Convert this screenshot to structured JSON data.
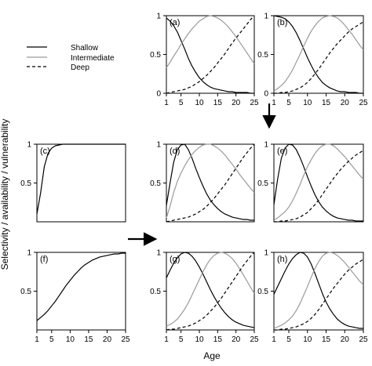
{
  "figure": {
    "ylabel": "Selectivity / availability / vulnerability",
    "xlabel": "Age"
  },
  "legend": [
    {
      "label": "Shallow",
      "style": "solid",
      "color": "#000000"
    },
    {
      "label": "Intermediate",
      "style": "solid",
      "color": "#9a9a9a"
    },
    {
      "label": "Deep",
      "style": "dashed",
      "color": "#000000"
    }
  ],
  "arrows": [
    {
      "name": "arrow-down",
      "from_panel": "b",
      "to_panel": "e"
    },
    {
      "name": "arrow-right",
      "from_panel": "f",
      "to_panel": "g"
    }
  ],
  "chart_data": [
    {
      "panel": "a",
      "type": "line",
      "xlim": [
        1,
        25
      ],
      "ylim": [
        0,
        1
      ],
      "xticks": [
        "1",
        "5",
        "10",
        "15",
        "20",
        "25"
      ],
      "yticks": [
        "0",
        "0.5",
        "1"
      ],
      "x": [
        1,
        2,
        3,
        4,
        5,
        6,
        7,
        8,
        9,
        10,
        11,
        12,
        13,
        14,
        15,
        16,
        17,
        18,
        19,
        20,
        21,
        22,
        23,
        24,
        25
      ],
      "series": [
        {
          "name": "Shallow",
          "values": [
            0.97,
            0.93,
            0.87,
            0.79,
            0.68,
            0.57,
            0.45,
            0.35,
            0.27,
            0.2,
            0.15,
            0.11,
            0.08,
            0.06,
            0.05,
            0.04,
            0.03,
            0.02,
            0.02,
            0.01,
            0.01,
            0.01,
            0.01,
            0.0,
            0.0
          ]
        },
        {
          "name": "Intermediate",
          "values": [
            0.33,
            0.4,
            0.48,
            0.55,
            0.63,
            0.7,
            0.77,
            0.83,
            0.88,
            0.93,
            0.96,
            0.99,
            1.0,
            0.99,
            0.97,
            0.94,
            0.9,
            0.85,
            0.79,
            0.73,
            0.66,
            0.59,
            0.52,
            0.45,
            0.38
          ]
        },
        {
          "name": "Deep",
          "values": [
            0.0,
            0.01,
            0.02,
            0.03,
            0.04,
            0.05,
            0.07,
            0.09,
            0.12,
            0.15,
            0.19,
            0.23,
            0.28,
            0.33,
            0.39,
            0.45,
            0.51,
            0.58,
            0.65,
            0.71,
            0.77,
            0.83,
            0.89,
            0.95,
            1.0
          ]
        }
      ]
    },
    {
      "panel": "b",
      "type": "line",
      "xlim": [
        1,
        25
      ],
      "ylim": [
        0,
        1
      ],
      "xticks": [
        "1",
        "5",
        "10",
        "15",
        "20",
        "25"
      ],
      "yticks": [
        "0",
        "0.5",
        "1"
      ],
      "x": [
        1,
        2,
        3,
        4,
        5,
        6,
        7,
        8,
        9,
        10,
        11,
        12,
        13,
        14,
        15,
        16,
        17,
        18,
        19,
        20,
        21,
        22,
        23,
        24,
        25
      ],
      "series": [
        {
          "name": "Shallow",
          "values": [
            1.0,
            0.99,
            0.98,
            0.96,
            0.92,
            0.86,
            0.78,
            0.68,
            0.57,
            0.46,
            0.36,
            0.27,
            0.2,
            0.14,
            0.1,
            0.07,
            0.05,
            0.03,
            0.02,
            0.02,
            0.01,
            0.01,
            0.01,
            0.0,
            0.0
          ]
        },
        {
          "name": "Intermediate",
          "values": [
            0.03,
            0.06,
            0.1,
            0.15,
            0.22,
            0.3,
            0.4,
            0.5,
            0.61,
            0.71,
            0.8,
            0.87,
            0.93,
            0.97,
            0.99,
            1.0,
            0.99,
            0.97,
            0.93,
            0.88,
            0.82,
            0.76,
            0.69,
            0.62,
            0.56
          ]
        },
        {
          "name": "Deep",
          "values": [
            0.0,
            0.0,
            0.01,
            0.01,
            0.02,
            0.03,
            0.05,
            0.07,
            0.1,
            0.14,
            0.19,
            0.25,
            0.31,
            0.38,
            0.45,
            0.52,
            0.58,
            0.64,
            0.69,
            0.74,
            0.79,
            0.83,
            0.86,
            0.89,
            0.92
          ]
        }
      ]
    },
    {
      "panel": "c",
      "type": "line",
      "xlim": [
        1,
        25
      ],
      "ylim": [
        0,
        1
      ],
      "yticks": [
        "0.5",
        "1"
      ],
      "x": [
        1,
        2,
        3,
        4,
        5,
        6,
        7,
        8,
        9,
        10,
        11,
        12,
        13,
        14,
        15,
        16,
        17,
        18,
        19,
        20,
        21,
        22,
        23,
        24,
        25
      ],
      "series": [
        {
          "values": [
            0.1,
            0.37,
            0.71,
            0.88,
            0.95,
            0.98,
            0.99,
            1.0,
            1.0,
            1.0,
            1.0,
            1.0,
            1.0,
            1.0,
            1.0,
            1.0,
            1.0,
            1.0,
            1.0,
            1.0,
            1.0,
            1.0,
            1.0,
            1.0,
            1.0
          ]
        }
      ]
    },
    {
      "panel": "d",
      "type": "line",
      "xlim": [
        1,
        25
      ],
      "ylim": [
        0,
        1
      ],
      "yticks": [
        "0.5",
        "1"
      ],
      "x": [
        1,
        2,
        3,
        4,
        5,
        6,
        7,
        8,
        9,
        10,
        11,
        12,
        13,
        14,
        15,
        16,
        17,
        18,
        19,
        20,
        21,
        22,
        23,
        24,
        25
      ],
      "series": [
        {
          "name": "Shallow",
          "values": [
            0.21,
            0.5,
            0.77,
            0.93,
            0.99,
            1.0,
            0.93,
            0.82,
            0.69,
            0.57,
            0.46,
            0.36,
            0.28,
            0.22,
            0.17,
            0.13,
            0.1,
            0.08,
            0.06,
            0.05,
            0.04,
            0.03,
            0.03,
            0.02,
            0.02
          ]
        },
        {
          "name": "Intermediate",
          "values": [
            0.05,
            0.2,
            0.38,
            0.52,
            0.63,
            0.72,
            0.8,
            0.87,
            0.92,
            0.96,
            0.99,
            1.0,
            1.0,
            0.98,
            0.95,
            0.91,
            0.86,
            0.8,
            0.74,
            0.68,
            0.61,
            0.55,
            0.49,
            0.43,
            0.38
          ]
        },
        {
          "name": "Deep",
          "values": [
            0.0,
            0.01,
            0.02,
            0.03,
            0.04,
            0.05,
            0.06,
            0.08,
            0.1,
            0.13,
            0.16,
            0.2,
            0.25,
            0.3,
            0.36,
            0.42,
            0.48,
            0.55,
            0.62,
            0.69,
            0.76,
            0.83,
            0.89,
            0.95,
            1.0
          ]
        }
      ]
    },
    {
      "panel": "e",
      "type": "line",
      "xlim": [
        1,
        25
      ],
      "ylim": [
        0,
        1
      ],
      "yticks": [
        "0.5",
        "1"
      ],
      "x": [
        1,
        2,
        3,
        4,
        5,
        6,
        7,
        8,
        9,
        10,
        11,
        12,
        13,
        14,
        15,
        16,
        17,
        18,
        19,
        20,
        21,
        22,
        23,
        24,
        25
      ],
      "series": [
        {
          "name": "Shallow",
          "values": [
            0.22,
            0.55,
            0.82,
            0.95,
            1.0,
            0.99,
            0.93,
            0.83,
            0.71,
            0.58,
            0.46,
            0.35,
            0.26,
            0.19,
            0.14,
            0.1,
            0.07,
            0.05,
            0.04,
            0.03,
            0.02,
            0.02,
            0.01,
            0.01,
            0.01
          ]
        },
        {
          "name": "Intermediate",
          "values": [
            0.02,
            0.05,
            0.09,
            0.13,
            0.19,
            0.27,
            0.37,
            0.48,
            0.6,
            0.71,
            0.8,
            0.88,
            0.94,
            0.98,
            1.0,
            1.0,
            0.98,
            0.94,
            0.89,
            0.84,
            0.78,
            0.72,
            0.66,
            0.6,
            0.55
          ]
        },
        {
          "name": "Deep",
          "values": [
            0.0,
            0.0,
            0.01,
            0.01,
            0.02,
            0.03,
            0.04,
            0.06,
            0.09,
            0.12,
            0.17,
            0.22,
            0.28,
            0.35,
            0.42,
            0.49,
            0.56,
            0.62,
            0.68,
            0.73,
            0.78,
            0.82,
            0.86,
            0.89,
            0.92
          ]
        }
      ]
    },
    {
      "panel": "f",
      "type": "line",
      "xlim": [
        1,
        25
      ],
      "ylim": [
        0,
        1
      ],
      "xticks": [
        "1",
        "5",
        "10",
        "15",
        "20",
        "25"
      ],
      "yticks": [
        "0.5",
        "1"
      ],
      "x": [
        1,
        2,
        3,
        4,
        5,
        6,
        7,
        8,
        9,
        10,
        11,
        12,
        13,
        14,
        15,
        16,
        17,
        18,
        19,
        20,
        21,
        22,
        23,
        24,
        25
      ],
      "series": [
        {
          "values": [
            0.12,
            0.16,
            0.2,
            0.25,
            0.31,
            0.37,
            0.44,
            0.51,
            0.58,
            0.64,
            0.7,
            0.75,
            0.8,
            0.84,
            0.87,
            0.9,
            0.92,
            0.94,
            0.95,
            0.96,
            0.97,
            0.98,
            0.98,
            0.99,
            0.99
          ]
        }
      ]
    },
    {
      "panel": "g",
      "type": "line",
      "xlim": [
        1,
        25
      ],
      "ylim": [
        0,
        1
      ],
      "xticks": [
        "1",
        "5",
        "10",
        "15",
        "20",
        "25"
      ],
      "yticks": [
        "0.5",
        "1"
      ],
      "x": [
        1,
        2,
        3,
        4,
        5,
        6,
        7,
        8,
        9,
        10,
        11,
        12,
        13,
        14,
        15,
        16,
        17,
        18,
        19,
        20,
        21,
        22,
        23,
        24,
        25
      ],
      "series": [
        {
          "name": "Shallow",
          "values": [
            0.67,
            0.77,
            0.86,
            0.93,
            0.98,
            1.0,
            0.99,
            0.95,
            0.89,
            0.81,
            0.72,
            0.62,
            0.52,
            0.43,
            0.35,
            0.28,
            0.22,
            0.17,
            0.13,
            0.1,
            0.08,
            0.06,
            0.05,
            0.04,
            0.03
          ]
        },
        {
          "name": "Intermediate",
          "values": [
            0.05,
            0.07,
            0.1,
            0.14,
            0.2,
            0.27,
            0.35,
            0.45,
            0.55,
            0.65,
            0.75,
            0.84,
            0.91,
            0.96,
            0.99,
            1.0,
            0.99,
            0.96,
            0.92,
            0.86,
            0.79,
            0.71,
            0.63,
            0.55,
            0.47
          ]
        },
        {
          "name": "Deep",
          "values": [
            0.0,
            0.01,
            0.01,
            0.02,
            0.03,
            0.04,
            0.05,
            0.07,
            0.09,
            0.12,
            0.15,
            0.19,
            0.24,
            0.29,
            0.35,
            0.41,
            0.48,
            0.55,
            0.62,
            0.69,
            0.76,
            0.83,
            0.89,
            0.95,
            1.0
          ]
        }
      ]
    },
    {
      "panel": "h",
      "type": "line",
      "xlim": [
        1,
        25
      ],
      "ylim": [
        0,
        1
      ],
      "xticks": [
        "1",
        "5",
        "10",
        "15",
        "20",
        "25"
      ],
      "yticks": [
        "0.5",
        "1"
      ],
      "x": [
        1,
        2,
        3,
        4,
        5,
        6,
        7,
        8,
        9,
        10,
        11,
        12,
        13,
        14,
        15,
        16,
        17,
        18,
        19,
        20,
        21,
        22,
        23,
        24,
        25
      ],
      "series": [
        {
          "name": "Shallow",
          "values": [
            0.46,
            0.56,
            0.66,
            0.76,
            0.85,
            0.92,
            0.97,
            1.0,
            0.99,
            0.94,
            0.85,
            0.73,
            0.6,
            0.47,
            0.36,
            0.27,
            0.2,
            0.14,
            0.1,
            0.07,
            0.05,
            0.04,
            0.03,
            0.02,
            0.02
          ]
        },
        {
          "name": "Intermediate",
          "values": [
            0.02,
            0.04,
            0.06,
            0.09,
            0.13,
            0.18,
            0.25,
            0.34,
            0.45,
            0.56,
            0.68,
            0.79,
            0.88,
            0.95,
            0.99,
            1.0,
            0.99,
            0.96,
            0.92,
            0.87,
            0.81,
            0.75,
            0.69,
            0.63,
            0.58
          ]
        },
        {
          "name": "Deep",
          "values": [
            0.0,
            0.0,
            0.01,
            0.01,
            0.02,
            0.03,
            0.04,
            0.06,
            0.08,
            0.11,
            0.15,
            0.2,
            0.26,
            0.33,
            0.4,
            0.47,
            0.54,
            0.6,
            0.66,
            0.72,
            0.77,
            0.81,
            0.85,
            0.88,
            0.91
          ]
        }
      ]
    }
  ]
}
